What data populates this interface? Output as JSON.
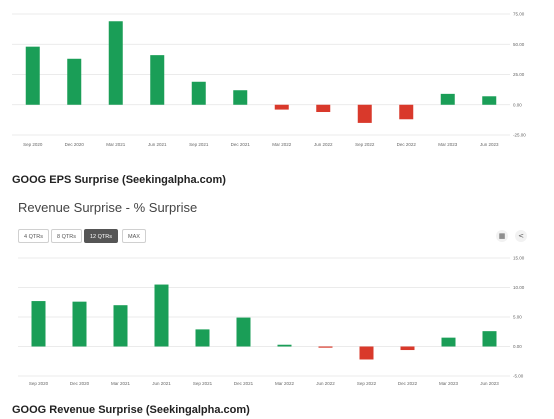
{
  "eps_caption": "GOOG EPS Surprise (Seekingalpha.com)",
  "revenue": {
    "title": "Revenue Surprise - % Surprise",
    "range_buttons": [
      {
        "label": "4 QTRs",
        "active": false
      },
      {
        "label": "8 QTRs",
        "active": false
      },
      {
        "label": "12 QTRs",
        "active": true
      },
      {
        "label": "MAX",
        "active": false
      }
    ],
    "calendar_icon": "calendar-icon",
    "share_icon": "share-icon"
  },
  "revenue_caption": "GOOG Revenue Surprise (Seekingalpha.com)",
  "colors": {
    "positive": "#1a9e57",
    "negative": "#d9392b",
    "grid": "#e4e4e4"
  },
  "chart_data": [
    {
      "type": "bar",
      "categories": [
        "Sep 2020",
        "Dec 2020",
        "Mar 2021",
        "Jun 2021",
        "Sep 2021",
        "Dec 2021",
        "Mar 2022",
        "Jun 2022",
        "Sep 2022",
        "Dec 2022",
        "Mar 2023",
        "Jun 2023"
      ],
      "values": [
        48,
        38,
        69,
        41,
        19,
        12,
        -4,
        -6,
        -15,
        -12,
        9,
        7
      ],
      "yticks": [
        "75.00",
        "50.00",
        "25.00",
        "0.00",
        "-25.00"
      ],
      "ylim": [
        -25,
        75
      ],
      "grid": true
    },
    {
      "type": "bar",
      "categories": [
        "Sep 2020",
        "Dec 2020",
        "Mar 2021",
        "Jun 2021",
        "Sep 2021",
        "Dec 2021",
        "Mar 2022",
        "Jun 2022",
        "Sep 2022",
        "Dec 2022",
        "Mar 2023",
        "Jun 2023"
      ],
      "values": [
        7.7,
        7.6,
        7.0,
        10.5,
        2.9,
        4.9,
        0.3,
        -0.2,
        -2.2,
        -0.6,
        1.5,
        2.6
      ],
      "yticks": [
        "15.00",
        "10.00",
        "5.00",
        "0.00",
        "-5.00"
      ],
      "ylim": [
        -5,
        15
      ],
      "grid": true
    }
  ]
}
